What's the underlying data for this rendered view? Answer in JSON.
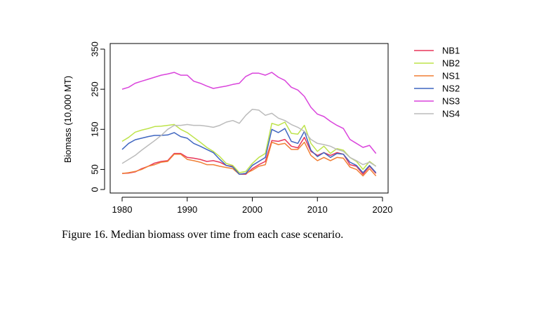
{
  "caption": "Figure 16. Median biomass over time from each case scenario.",
  "chart_data": {
    "type": "line",
    "title": "",
    "xlabel": "",
    "ylabel": "Biomass (10,000 MT)",
    "xlim": [
      1980,
      2020
    ],
    "ylim": [
      0,
      350
    ],
    "xticks": [
      1980,
      1990,
      2000,
      2010,
      2020
    ],
    "yticks": [
      0,
      50,
      150,
      250,
      350
    ],
    "grid": false,
    "legend_position": "right",
    "x": [
      1980,
      1981,
      1982,
      1983,
      1984,
      1985,
      1986,
      1987,
      1988,
      1989,
      1990,
      1991,
      1992,
      1993,
      1994,
      1995,
      1996,
      1997,
      1998,
      1999,
      2000,
      2001,
      2002,
      2003,
      2004,
      2005,
      2006,
      2007,
      2008,
      2009,
      2010,
      2011,
      2012,
      2013,
      2014,
      2015,
      2016,
      2017,
      2018,
      2019
    ],
    "series": [
      {
        "name": "NB1",
        "color": "#e8375a",
        "values": [
          40,
          41,
          44,
          52,
          58,
          66,
          70,
          72,
          90,
          90,
          80,
          78,
          75,
          70,
          72,
          68,
          60,
          58,
          38,
          38,
          52,
          62,
          70,
          122,
          120,
          125,
          108,
          104,
          130,
          95,
          85,
          92,
          85,
          92,
          88,
          62,
          58,
          38,
          58,
          40
        ]
      },
      {
        "name": "NB2",
        "color": "#bde34a",
        "values": [
          120,
          130,
          143,
          148,
          152,
          157,
          158,
          160,
          162,
          150,
          142,
          130,
          118,
          105,
          95,
          82,
          65,
          60,
          42,
          45,
          65,
          80,
          90,
          165,
          160,
          168,
          140,
          138,
          160,
          115,
          95,
          108,
          90,
          102,
          98,
          80,
          70,
          50,
          70,
          58
        ]
      },
      {
        "name": "NS1",
        "color": "#f07f35",
        "values": [
          40,
          42,
          45,
          50,
          58,
          62,
          68,
          70,
          88,
          88,
          75,
          72,
          68,
          62,
          62,
          58,
          55,
          52,
          38,
          40,
          48,
          58,
          62,
          118,
          112,
          115,
          100,
          100,
          118,
          85,
          72,
          80,
          72,
          80,
          78,
          56,
          50,
          34,
          52,
          34
        ]
      },
      {
        "name": "NS2",
        "color": "#3f66c0",
        "values": [
          100,
          115,
          124,
          128,
          132,
          135,
          135,
          136,
          142,
          132,
          128,
          115,
          108,
          100,
          92,
          75,
          60,
          56,
          38,
          40,
          60,
          70,
          80,
          150,
          142,
          152,
          120,
          115,
          145,
          98,
          82,
          92,
          80,
          90,
          88,
          68,
          60,
          42,
          60,
          42
        ]
      },
      {
        "name": "NS3",
        "color": "#da44dc",
        "values": [
          250,
          255,
          265,
          270,
          275,
          280,
          285,
          288,
          292,
          285,
          285,
          270,
          265,
          258,
          252,
          255,
          258,
          262,
          265,
          282,
          290,
          290,
          285,
          292,
          280,
          272,
          255,
          248,
          232,
          205,
          188,
          182,
          170,
          160,
          152,
          125,
          115,
          105,
          110,
          90
        ]
      },
      {
        "name": "NS4",
        "color": "#bbbbbb",
        "values": [
          65,
          75,
          85,
          98,
          110,
          122,
          135,
          150,
          160,
          160,
          162,
          160,
          160,
          158,
          155,
          160,
          168,
          172,
          165,
          185,
          200,
          198,
          185,
          190,
          178,
          172,
          162,
          155,
          145,
          125,
          115,
          112,
          108,
          100,
          95,
          80,
          72,
          62,
          68,
          58
        ]
      }
    ]
  }
}
